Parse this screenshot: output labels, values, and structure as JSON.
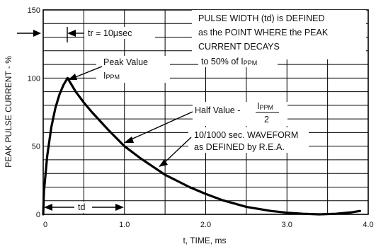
{
  "chart_data": {
    "type": "line",
    "xlabel": "t, TIME, ms",
    "ylabel": "PEAK PULSE CURRENT - %",
    "xlim": [
      0,
      4.0
    ],
    "ylim": [
      0,
      150
    ],
    "x_ticks": [
      0,
      1.0,
      2.0,
      3.0,
      4.0
    ],
    "x_tick_labels": [
      "0",
      "1.0",
      "2.0",
      "3.0",
      "4.0"
    ],
    "y_ticks": [
      0,
      50,
      100,
      150
    ],
    "y_tick_labels": [
      "0",
      "50",
      "100",
      "150"
    ],
    "grid": true,
    "series": [
      {
        "x": [
          0,
          0.01,
          0.05,
          0.1,
          0.15,
          0.2,
          0.25,
          0.3,
          0.35,
          0.4,
          0.5,
          0.6,
          0.8,
          1.0,
          1.2,
          1.5,
          1.8,
          2.0,
          2.2,
          2.5,
          2.8,
          3.0,
          3.2,
          3.4,
          3.6,
          3.8,
          3.9
        ],
        "y": [
          0,
          17,
          43,
          64,
          78,
          88,
          95,
          100,
          95,
          90,
          82,
          75,
          62,
          50,
          41,
          29,
          20,
          15,
          10.5,
          5.5,
          2.5,
          1.2,
          0.4,
          0,
          0.4,
          1.5,
          2.5
        ]
      }
    ],
    "annotations": {
      "tr_label": "tr = 10μsec",
      "td_label": "td",
      "peak_label": "Peak Value",
      "peak_sub": "I",
      "peak_sub_small": "PPM",
      "half_label": "Half Value -",
      "half_num": "I",
      "half_num_small": "PPM",
      "half_den": "2",
      "pulse_line1": "PULSE WIDTH (td) is DEFINED",
      "pulse_line2": "as the POINT WHERE the PEAK",
      "pulse_line3": "CURRENT DECAYS",
      "pulse_line4": "to 50% of I",
      "pulse_line4_small": "PPM",
      "wave_line1": "10/1000 sec. WAVEFORM",
      "wave_line2": "as DEFINED by R.E.A."
    }
  }
}
